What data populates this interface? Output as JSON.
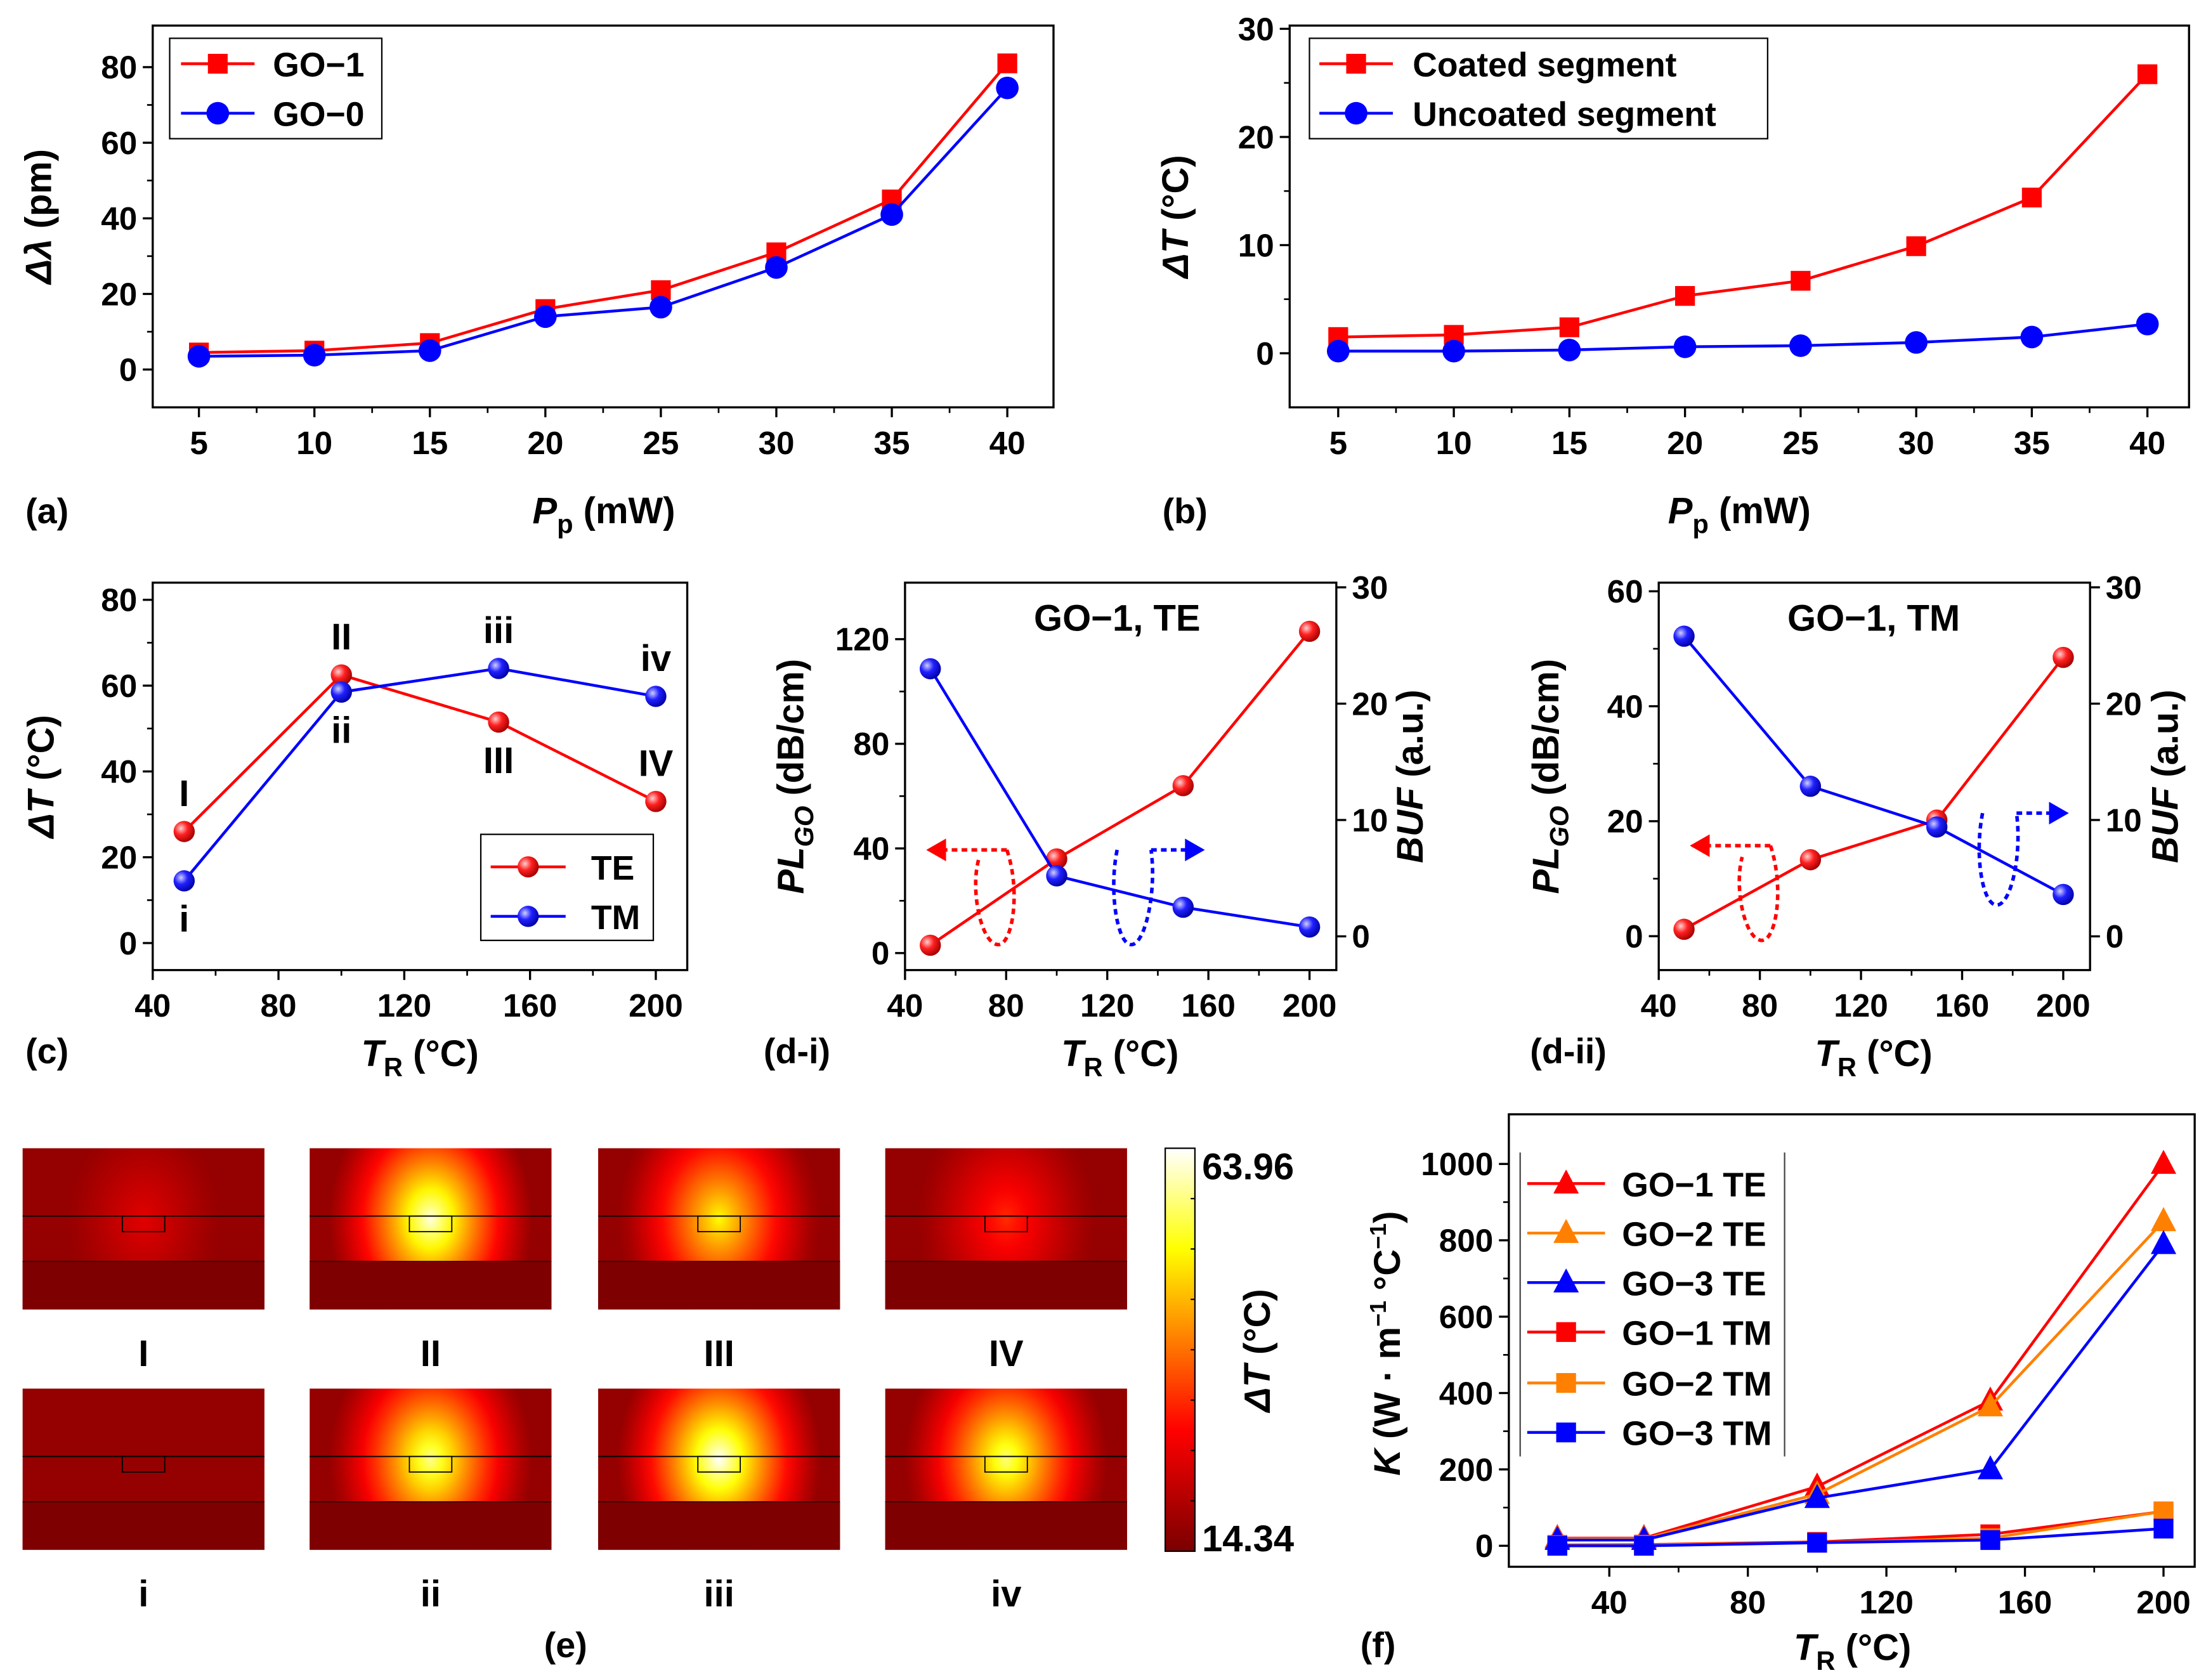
{
  "chart_data": [
    {
      "type": "line",
      "panel_label": "(a)",
      "x": [
        5,
        10,
        15,
        20,
        25,
        30,
        35,
        40
      ],
      "xticks": [
        5,
        10,
        15,
        20,
        25,
        30,
        35,
        40
      ],
      "yticks": [
        0,
        20,
        40,
        60,
        80
      ],
      "xlim": [
        3,
        42
      ],
      "ylim": [
        -10,
        91
      ],
      "xlabel": [
        {
          "t": "P",
          "s": "i"
        },
        {
          "t": "p",
          "s": "sub"
        },
        {
          "t": " (mW)"
        }
      ],
      "ylabel": [
        {
          "t": "Δλ",
          "s": "i"
        },
        {
          "t": " (pm)"
        }
      ],
      "legend": "top-left",
      "grid": false,
      "series": [
        {
          "name": "GO−1",
          "color": "#ff0000",
          "marker": "square",
          "values": [
            4.5,
            5,
            7,
            16,
            21,
            31,
            45,
            81
          ]
        },
        {
          "name": "GO−0",
          "color": "#0000ff",
          "marker": "circle",
          "values": [
            3.5,
            3.8,
            5,
            14,
            16.5,
            27,
            41,
            74.5
          ]
        }
      ]
    },
    {
      "type": "line",
      "panel_label": "(b)",
      "x": [
        5,
        10,
        15,
        20,
        25,
        30,
        35,
        40
      ],
      "xticks": [
        5,
        10,
        15,
        20,
        25,
        30,
        35,
        40
      ],
      "yticks": [
        0,
        10,
        20,
        30
      ],
      "xlim": [
        2.9,
        41.8
      ],
      "ylim": [
        -5,
        30.3
      ],
      "xlabel": [
        {
          "t": "P",
          "s": "i"
        },
        {
          "t": "p",
          "s": "sub"
        },
        {
          "t": " (mW)"
        }
      ],
      "ylabel": [
        {
          "t": "ΔT",
          "s": "i"
        },
        {
          "t": " (°C)"
        }
      ],
      "legend": "top-left",
      "grid": false,
      "series": [
        {
          "name": "Coated segment",
          "color": "#ff0000",
          "marker": "square",
          "values": [
            1.5,
            1.7,
            2.4,
            5.3,
            6.7,
            9.9,
            14.4,
            25.8
          ]
        },
        {
          "name": "Uncoated segment",
          "color": "#0000ff",
          "marker": "circle",
          "values": [
            0.2,
            0.2,
            0.3,
            0.6,
            0.7,
            1.0,
            1.5,
            2.7
          ]
        }
      ]
    },
    {
      "type": "line",
      "panel_label": "(c)",
      "x": [
        50,
        100,
        150,
        200
      ],
      "xticks": [
        40,
        80,
        120,
        160,
        200
      ],
      "yticks": [
        0,
        20,
        40,
        60,
        80
      ],
      "xlim": [
        40,
        210
      ],
      "ylim": [
        -6.3,
        84
      ],
      "xlabel": [
        {
          "t": "T",
          "s": "i"
        },
        {
          "t": "R",
          "s": "sub"
        },
        {
          "t": " (°C)"
        }
      ],
      "ylabel": [
        {
          "t": "ΔT",
          "s": "i"
        },
        {
          "t": " (°C)"
        }
      ],
      "legend": "bottom-right",
      "grid": false,
      "series": [
        {
          "name": "TE",
          "color": "#ff0000",
          "marker": "sphere",
          "values": [
            26,
            62.5,
            51.5,
            33
          ]
        },
        {
          "name": "TM",
          "color": "#0000ff",
          "marker": "sphere",
          "values": [
            14.5,
            58.5,
            64,
            57.5
          ]
        }
      ],
      "annotations": [
        {
          "text": "I",
          "series": 0,
          "point": 0,
          "place": "above"
        },
        {
          "text": "II",
          "series": 0,
          "point": 1,
          "place": "above"
        },
        {
          "text": "III",
          "series": 0,
          "point": 2,
          "place": "below"
        },
        {
          "text": "IV",
          "series": 0,
          "point": 3,
          "place": "above"
        },
        {
          "text": "i",
          "series": 1,
          "point": 0,
          "place": "below"
        },
        {
          "text": "ii",
          "series": 1,
          "point": 1,
          "place": "below"
        },
        {
          "text": "iii",
          "series": 1,
          "point": 2,
          "place": "above"
        },
        {
          "text": "iv",
          "series": 1,
          "point": 3,
          "place": "above"
        }
      ]
    },
    {
      "type": "line",
      "panel_label": "(d-i)",
      "title": "GO−1, TE",
      "x": [
        50,
        100,
        150,
        200
      ],
      "xticks": [
        40,
        80,
        120,
        160,
        200
      ],
      "yticks": [
        0,
        40,
        80,
        120
      ],
      "yticks_right": [
        0,
        10,
        20,
        30
      ],
      "xlim": [
        40,
        210.6
      ],
      "ylim": [
        -6.5,
        141.6
      ],
      "ylim_right": [
        -2.9,
        30.4
      ],
      "xlabel": [
        {
          "t": "T",
          "s": "i"
        },
        {
          "t": "R",
          "s": "sub"
        },
        {
          "t": " (°C)"
        }
      ],
      "ylabel": [
        {
          "t": "PL",
          "s": "i"
        },
        {
          "t": "GO",
          "s": "isub"
        },
        {
          "t": " (dB/cm)"
        }
      ],
      "ylabel_right": [
        {
          "t": "BUF",
          "s": "i"
        },
        {
          "t": " (a.u.)"
        }
      ],
      "grid": false,
      "series": [
        {
          "color": "#ff0000",
          "marker": "sphere",
          "axis": "left",
          "values": [
            3,
            36,
            64,
            123
          ]
        },
        {
          "color": "#0000ff",
          "marker": "sphere",
          "axis": "right",
          "values": [
            23,
            5.2,
            2.5,
            0.8
          ]
        }
      ]
    },
    {
      "type": "line",
      "panel_label": "(d-ii)",
      "title": "GO−1, TM",
      "x": [
        50,
        100,
        150,
        200
      ],
      "xticks": [
        40,
        80,
        120,
        160,
        200
      ],
      "yticks": [
        0,
        20,
        40,
        60
      ],
      "yticks_right": [
        0,
        10,
        20,
        30
      ],
      "xlim": [
        40,
        210.6
      ],
      "ylim": [
        -5.9,
        61.5
      ],
      "ylim_right": [
        -2.9,
        30.4
      ],
      "xlabel": [
        {
          "t": "T",
          "s": "i"
        },
        {
          "t": "R",
          "s": "sub"
        },
        {
          "t": " (°C)"
        }
      ],
      "ylabel": [
        {
          "t": "PL",
          "s": "i"
        },
        {
          "t": "GO",
          "s": "isub"
        },
        {
          "t": " (dB/cm)"
        }
      ],
      "ylabel_right": [
        {
          "t": "BUF",
          "s": "i"
        },
        {
          "t": " (a.u.)"
        }
      ],
      "grid": false,
      "series": [
        {
          "color": "#ff0000",
          "marker": "sphere",
          "axis": "left",
          "values": [
            1.2,
            13.3,
            20.2,
            48.5
          ]
        },
        {
          "color": "#0000ff",
          "marker": "sphere",
          "axis": "right",
          "values": [
            25.8,
            12.9,
            9.4,
            3.6
          ]
        }
      ]
    },
    {
      "type": "heatmap",
      "panel_label": "(e)",
      "rows": [
        [
          {
            "label": "I",
            "peak_dT": 26
          },
          {
            "label": "II",
            "peak_dT": 62.5
          },
          {
            "label": "III",
            "peak_dT": 51.5
          },
          {
            "label": "IV",
            "peak_dT": 33
          }
        ],
        [
          {
            "label": "i",
            "peak_dT": 14.5
          },
          {
            "label": "ii",
            "peak_dT": 58.5
          },
          {
            "label": "iii",
            "peak_dT": 64
          },
          {
            "label": "iv",
            "peak_dT": 57.5
          }
        ]
      ],
      "colorbar": {
        "max": "63.96",
        "min": "14.34",
        "label": [
          {
            "t": "ΔT",
            "s": "i"
          },
          {
            "t": " (°C)"
          }
        ],
        "colors": [
          "#7a0000",
          "#ff0000",
          "#ff8c00",
          "#ffff00",
          "#ffffff"
        ]
      }
    },
    {
      "type": "line",
      "panel_label": "(f)",
      "x": [
        25,
        50,
        100,
        150,
        200
      ],
      "xticks": [
        40,
        80,
        120,
        160,
        200
      ],
      "yticks": [
        0,
        200,
        400,
        600,
        800,
        1000
      ],
      "xlim": [
        11,
        209
      ],
      "ylim": [
        -55,
        1130
      ],
      "xlabel": [
        {
          "t": "T",
          "s": "i"
        },
        {
          "t": "R",
          "s": "sub"
        },
        {
          "t": " (°C)"
        }
      ],
      "ylabel": [
        {
          "t": "K",
          "s": "i"
        },
        {
          "t": " (W · m"
        },
        {
          "t": "−1",
          "s": "sup"
        },
        {
          "t": " °C"
        },
        {
          "t": "−1",
          "s": "sup"
        },
        {
          "t": ")"
        }
      ],
      "legend": "top-left",
      "grid": false,
      "series": [
        {
          "name": "GO−1 TE",
          "color": "#ff0000",
          "marker": "triangle",
          "values": [
            20,
            20,
            155,
            380,
            1000
          ]
        },
        {
          "name": "GO−2 TE",
          "color": "#ff8000",
          "marker": "triangle",
          "values": [
            18,
            18,
            135,
            365,
            850
          ]
        },
        {
          "name": "GO−3 TE",
          "color": "#0000ff",
          "marker": "triangle",
          "values": [
            15,
            15,
            125,
            200,
            790
          ]
        },
        {
          "name": "GO−1 TM",
          "color": "#ff0000",
          "marker": "square",
          "values": [
            2,
            3,
            10,
            30,
            90
          ]
        },
        {
          "name": "GO−2 TM",
          "color": "#ff8000",
          "marker": "square",
          "values": [
            1,
            2,
            8,
            20,
            90
          ]
        },
        {
          "name": "GO−3 TM",
          "color": "#0000ff",
          "marker": "square",
          "values": [
            0,
            0,
            8,
            15,
            45
          ]
        }
      ]
    }
  ]
}
